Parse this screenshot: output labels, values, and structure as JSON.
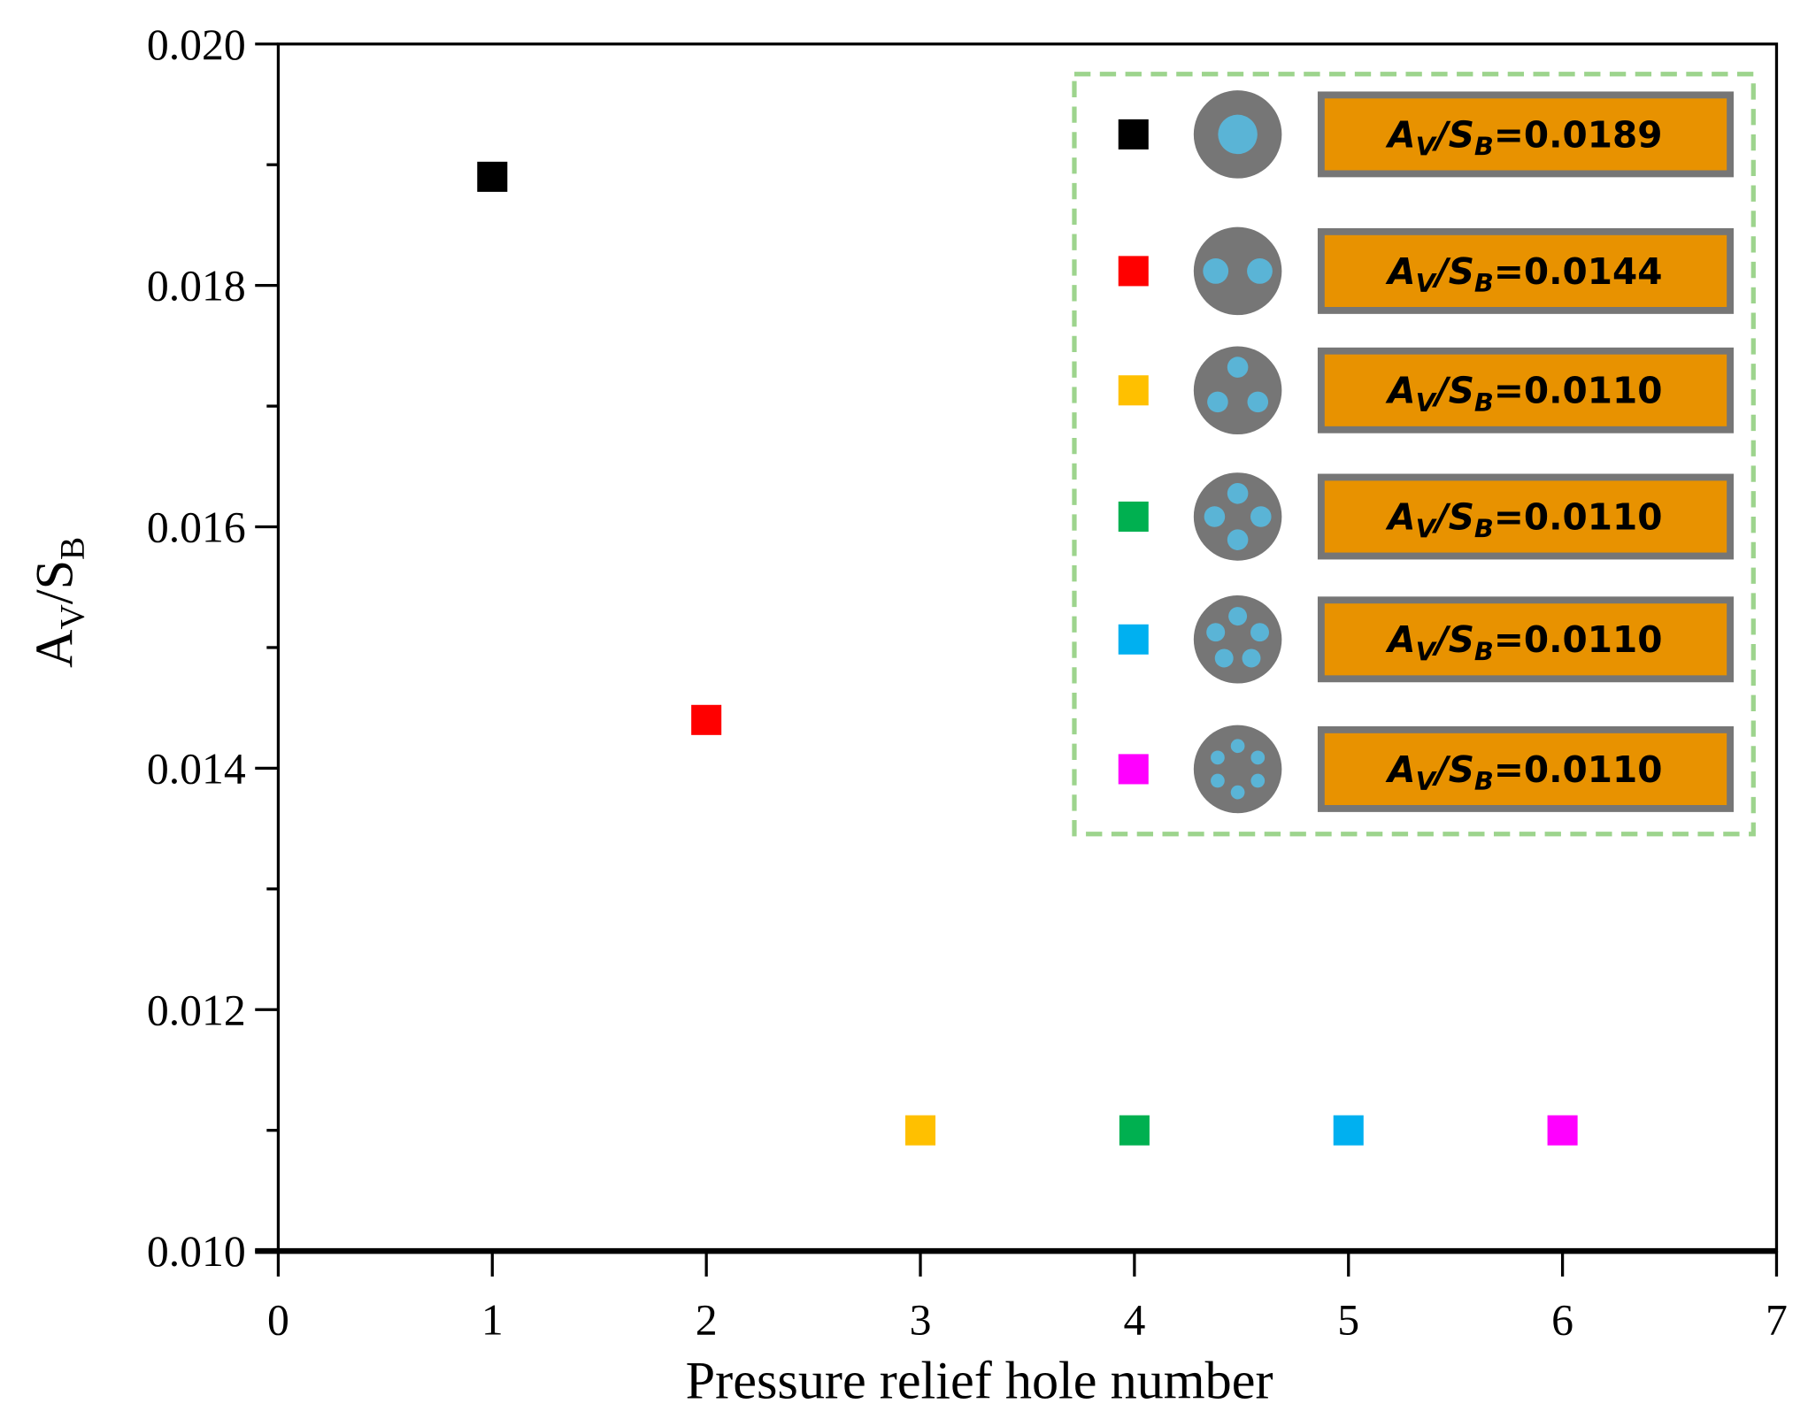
{
  "chart_data": {
    "type": "scatter",
    "xlabel": "Pressure relief hole number",
    "ylabel": {
      "main": "A",
      "sub1": "V",
      "mid": "/S",
      "sub2": "B"
    },
    "xlim": [
      0,
      7
    ],
    "ylim": [
      0.01,
      0.02
    ],
    "xticks": [
      "0",
      "1",
      "2",
      "3",
      "4",
      "5",
      "6",
      "7"
    ],
    "yticks": [
      "0.010",
      "0.012",
      "0.014",
      "0.016",
      "0.018",
      "0.020"
    ],
    "grid": false,
    "legend_placement": "top-right",
    "points": [
      {
        "x": 1,
        "y": 0.0189,
        "color": "#000000",
        "holes": 1,
        "label": {
          "a": "A",
          "asub": "V",
          "s": "/S",
          "ssub": "B",
          "value": "=0.0189"
        }
      },
      {
        "x": 2,
        "y": 0.0144,
        "color": "#ff0000",
        "holes": 2,
        "label": {
          "a": "A",
          "asub": "V",
          "s": "/S",
          "ssub": "B",
          "value": "=0.0144"
        }
      },
      {
        "x": 3,
        "y": 0.011,
        "color": "#ffc000",
        "holes": 3,
        "label": {
          "a": "A",
          "asub": "V",
          "s": "/S",
          "ssub": "B",
          "value": "=0.0110"
        }
      },
      {
        "x": 4,
        "y": 0.011,
        "color": "#00b050",
        "holes": 4,
        "label": {
          "a": "A",
          "asub": "V",
          "s": "/S",
          "ssub": "B",
          "value": "=0.0110"
        }
      },
      {
        "x": 5,
        "y": 0.011,
        "color": "#00b0f0",
        "holes": 5,
        "label": {
          "a": "A",
          "asub": "V",
          "s": "/S",
          "ssub": "B",
          "value": "=0.0110"
        }
      },
      {
        "x": 6,
        "y": 0.011,
        "color": "#ff00ff",
        "holes": 6,
        "label": {
          "a": "A",
          "asub": "V",
          "s": "/S",
          "ssub": "B",
          "value": "=0.0110"
        }
      }
    ],
    "colors": {
      "legend_border": "#9dd48d",
      "label_box": "#e89200",
      "label_box_border": "#767676",
      "disk": "#767676",
      "hole": "#5ab4d6"
    }
  }
}
